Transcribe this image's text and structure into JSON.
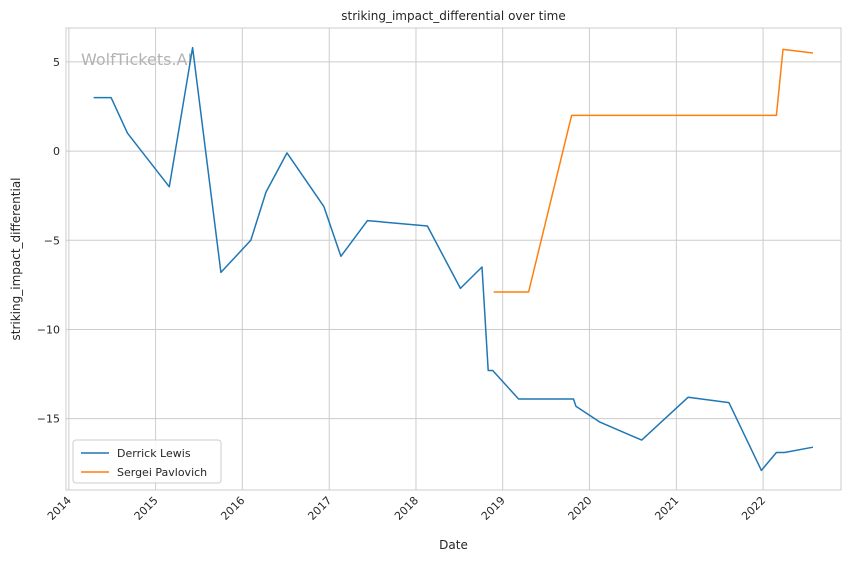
{
  "watermark": "WolfTickets.AI",
  "chart_data": {
    "type": "line",
    "title": "striking_impact_differential over time",
    "xlabel": "Date",
    "ylabel": "striking_impact_differential",
    "xlim": [
      "2013-12-20",
      "2022-11-25"
    ],
    "ylim": [
      -19.0,
      6.9
    ],
    "x_ticks": [
      "2014",
      "2015",
      "2016",
      "2017",
      "2018",
      "2019",
      "2020",
      "2021",
      "2022"
    ],
    "y_ticks": [
      5,
      0,
      -5,
      -10,
      -15
    ],
    "grid": true,
    "legend_position": "lower-left",
    "series": [
      {
        "name": "Derrick Lewis",
        "color": "#1f77b4",
        "points": [
          [
            "2014-04-15",
            3.0
          ],
          [
            "2014-06-28",
            3.0
          ],
          [
            "2014-09-05",
            1.0
          ],
          [
            "2015-02-28",
            -2.0
          ],
          [
            "2015-06-06",
            5.8
          ],
          [
            "2015-10-03",
            -6.8
          ],
          [
            "2016-02-06",
            -5.0
          ],
          [
            "2016-04-10",
            -2.3
          ],
          [
            "2016-07-07",
            -0.1
          ],
          [
            "2016-12-09",
            -3.1
          ],
          [
            "2017-02-19",
            -5.9
          ],
          [
            "2017-06-11",
            -3.9
          ],
          [
            "2018-02-18",
            -4.2
          ],
          [
            "2018-07-07",
            -7.7
          ],
          [
            "2018-10-06",
            -6.5
          ],
          [
            "2018-11-01",
            -12.3
          ],
          [
            "2018-11-20",
            -12.3
          ],
          [
            "2019-03-09",
            -13.9
          ],
          [
            "2019-10-26",
            -13.9
          ],
          [
            "2019-11-05",
            -14.3
          ],
          [
            "2020-02-15",
            -15.2
          ],
          [
            "2020-08-08",
            -16.2
          ],
          [
            "2021-02-20",
            -13.8
          ],
          [
            "2021-08-10",
            -14.1
          ],
          [
            "2021-12-25",
            -17.9
          ],
          [
            "2022-02-26",
            -16.9
          ],
          [
            "2022-04-01",
            -16.9
          ],
          [
            "2022-07-30",
            -16.6
          ]
        ]
      },
      {
        "name": "Sergei Pavlovich",
        "color": "#ff7f0e",
        "points": [
          [
            "2018-11-24",
            -7.9
          ],
          [
            "2019-04-20",
            -7.9
          ],
          [
            "2019-10-18",
            2.0
          ],
          [
            "2022-02-26",
            2.0
          ],
          [
            "2022-03-26",
            5.7
          ],
          [
            "2022-07-30",
            5.5
          ]
        ]
      }
    ]
  }
}
